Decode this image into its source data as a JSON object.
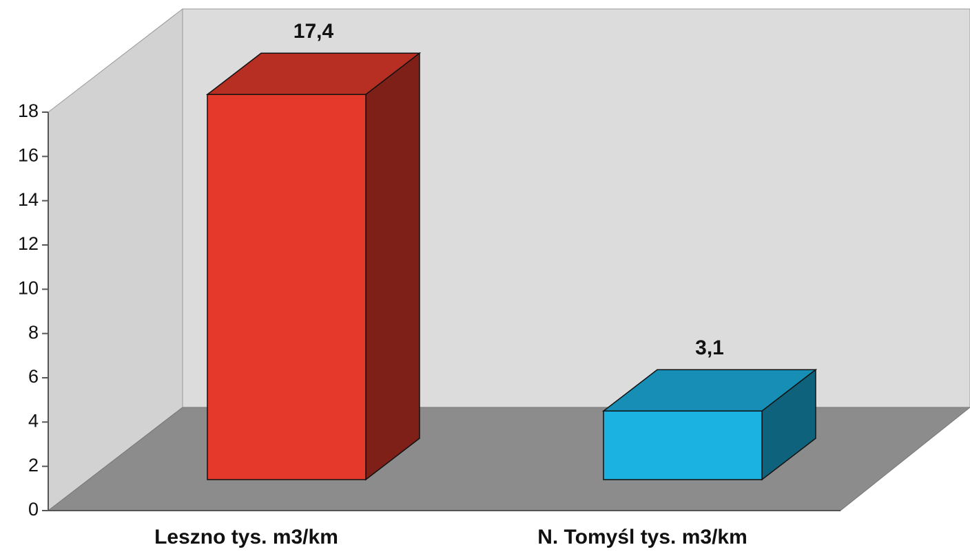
{
  "chart_data": {
    "type": "bar3d",
    "categories": [
      "Leszno tys. m3/km",
      "N. Tomyśl tys. m3/km"
    ],
    "values": [
      17.4,
      3.1
    ],
    "value_labels": [
      "17,4",
      "3,1"
    ],
    "colors": [
      "#e5392b",
      "#1bb2e2"
    ],
    "ylim": [
      0,
      18
    ],
    "yticks": [
      0,
      2,
      4,
      6,
      8,
      10,
      12,
      14,
      16,
      18
    ]
  }
}
